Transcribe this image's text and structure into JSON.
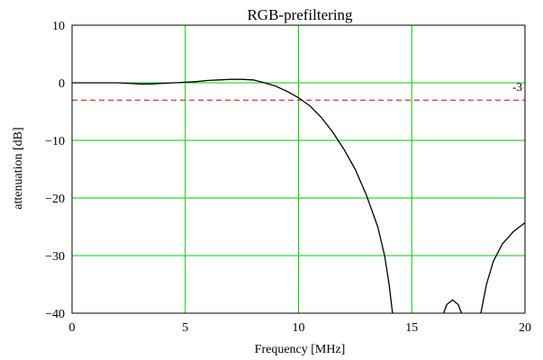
{
  "chart_data": {
    "type": "line",
    "title": "RGB-prefiltering",
    "xlabel": "Frequency [MHz]",
    "ylabel": "attenuation [dB]",
    "xlim": [
      0,
      20
    ],
    "ylim": [
      -40,
      10
    ],
    "xticks": [
      0,
      5,
      10,
      15,
      20
    ],
    "yticks": [
      10,
      0,
      -10,
      -20,
      -30,
      -40
    ],
    "grid": true,
    "colors": {
      "grid": "#00cc00",
      "curve": "#000000",
      "reference": "#dd0000"
    },
    "reference_line": {
      "y": -3,
      "label": "-3",
      "style": "dashed"
    },
    "series": [
      {
        "segments": [
          [
            [
              0,
              0
            ],
            [
              1,
              0
            ],
            [
              2,
              0
            ],
            [
              2.5,
              -0.1
            ],
            [
              3,
              -0.2
            ],
            [
              3.5,
              -0.2
            ],
            [
              4,
              -0.1
            ],
            [
              4.5,
              0
            ],
            [
              5,
              0.1
            ],
            [
              5.5,
              0.2
            ],
            [
              6,
              0.4
            ],
            [
              6.5,
              0.5
            ],
            [
              7,
              0.6
            ],
            [
              7.5,
              0.6
            ],
            [
              8,
              0.5
            ],
            [
              8.5,
              0
            ],
            [
              9,
              -0.6
            ],
            [
              9.5,
              -1.5
            ],
            [
              10,
              -2.6
            ],
            [
              10.5,
              -4
            ],
            [
              11,
              -6
            ],
            [
              11.5,
              -8.5
            ],
            [
              12,
              -11.5
            ],
            [
              12.5,
              -15
            ],
            [
              13,
              -19.5
            ],
            [
              13.5,
              -25
            ],
            [
              13.8,
              -30
            ],
            [
              14,
              -35
            ],
            [
              14.15,
              -40
            ]
          ],
          [
            [
              16.4,
              -40
            ],
            [
              16.55,
              -38.5
            ],
            [
              16.8,
              -37.7
            ],
            [
              17.05,
              -38.5
            ],
            [
              17.2,
              -40
            ]
          ],
          [
            [
              18.05,
              -40
            ],
            [
              18.3,
              -35
            ],
            [
              18.6,
              -31
            ],
            [
              19,
              -28
            ],
            [
              19.5,
              -25.8
            ],
            [
              20,
              -24.3
            ]
          ]
        ]
      }
    ]
  }
}
